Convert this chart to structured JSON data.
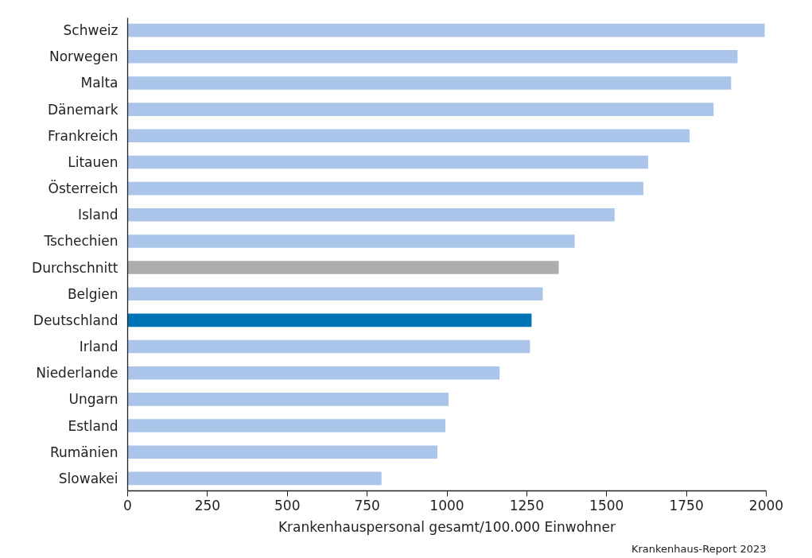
{
  "chart_data": {
    "type": "bar",
    "orientation": "horizontal",
    "categories": [
      "Schweiz",
      "Norwegen",
      "Malta",
      "Dänemark",
      "Frankreich",
      "Litauen",
      "Österreich",
      "Island",
      "Tschechien",
      "Durchschnitt",
      "Belgien",
      "Deutschland",
      "Irland",
      "Niederlande",
      "Ungarn",
      "Estland",
      "Rumänien",
      "Slowakei"
    ],
    "values": [
      1995,
      1910,
      1890,
      1835,
      1760,
      1630,
      1615,
      1525,
      1400,
      1350,
      1300,
      1265,
      1260,
      1165,
      1005,
      995,
      970,
      795
    ],
    "colors": [
      "#abc4e9",
      "#abc4e9",
      "#abc4e9",
      "#abc4e9",
      "#abc4e9",
      "#abc4e9",
      "#abc4e9",
      "#abc4e9",
      "#abc4e9",
      "#adadad",
      "#abc4e9",
      "#0072b6",
      "#abc4e9",
      "#abc4e9",
      "#abc4e9",
      "#abc4e9",
      "#abc4e9",
      "#abc4e9"
    ],
    "xlabel": "Krankenhauspersonal gesamt/100.000 Einwohner",
    "xlim": [
      0,
      2000
    ],
    "xticks": [
      0,
      250,
      500,
      750,
      1000,
      1250,
      1500,
      1750,
      2000
    ],
    "annotations": [
      "Krankenhaus-Report 2023"
    ]
  }
}
